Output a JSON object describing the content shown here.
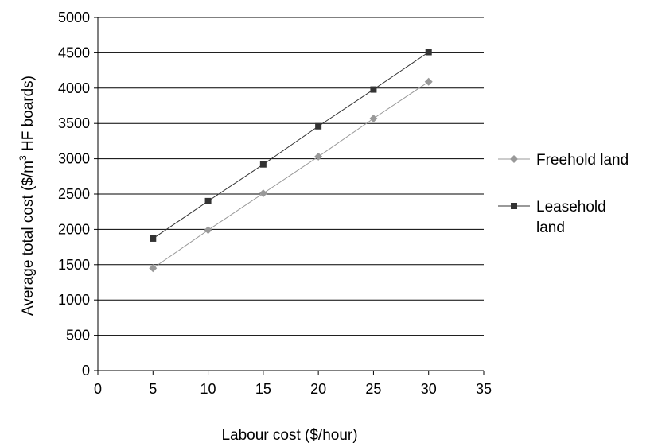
{
  "chart_data": {
    "type": "line",
    "xlabel": "Labour cost ($/hour)",
    "ylabel": {
      "before": "Average total cost ($/m",
      "sup": "3",
      "after": " HF boards)"
    },
    "xlim": [
      0,
      35
    ],
    "ylim": [
      0,
      5000
    ],
    "x_ticks": [
      0,
      5,
      10,
      15,
      20,
      25,
      30,
      35
    ],
    "y_ticks": [
      0,
      500,
      1000,
      1500,
      2000,
      2500,
      3000,
      3500,
      4000,
      4500,
      5000
    ],
    "grid": "horizontal",
    "legend_position": "right",
    "series": [
      {
        "name": "Freehold land",
        "legend_lines": [
          "Freehold land"
        ],
        "marker": "diamond",
        "color": "#999999",
        "x": [
          5,
          10,
          15,
          20,
          25,
          30
        ],
        "y": [
          1450,
          1990,
          2510,
          3030,
          3570,
          4090
        ]
      },
      {
        "name": "Leasehold land",
        "legend_lines": [
          "Leasehold",
          "land"
        ],
        "marker": "square",
        "color": "#333333",
        "x": [
          5,
          10,
          15,
          20,
          25,
          30
        ],
        "y": [
          1870,
          2400,
          2920,
          3460,
          3980,
          4510
        ]
      }
    ]
  }
}
